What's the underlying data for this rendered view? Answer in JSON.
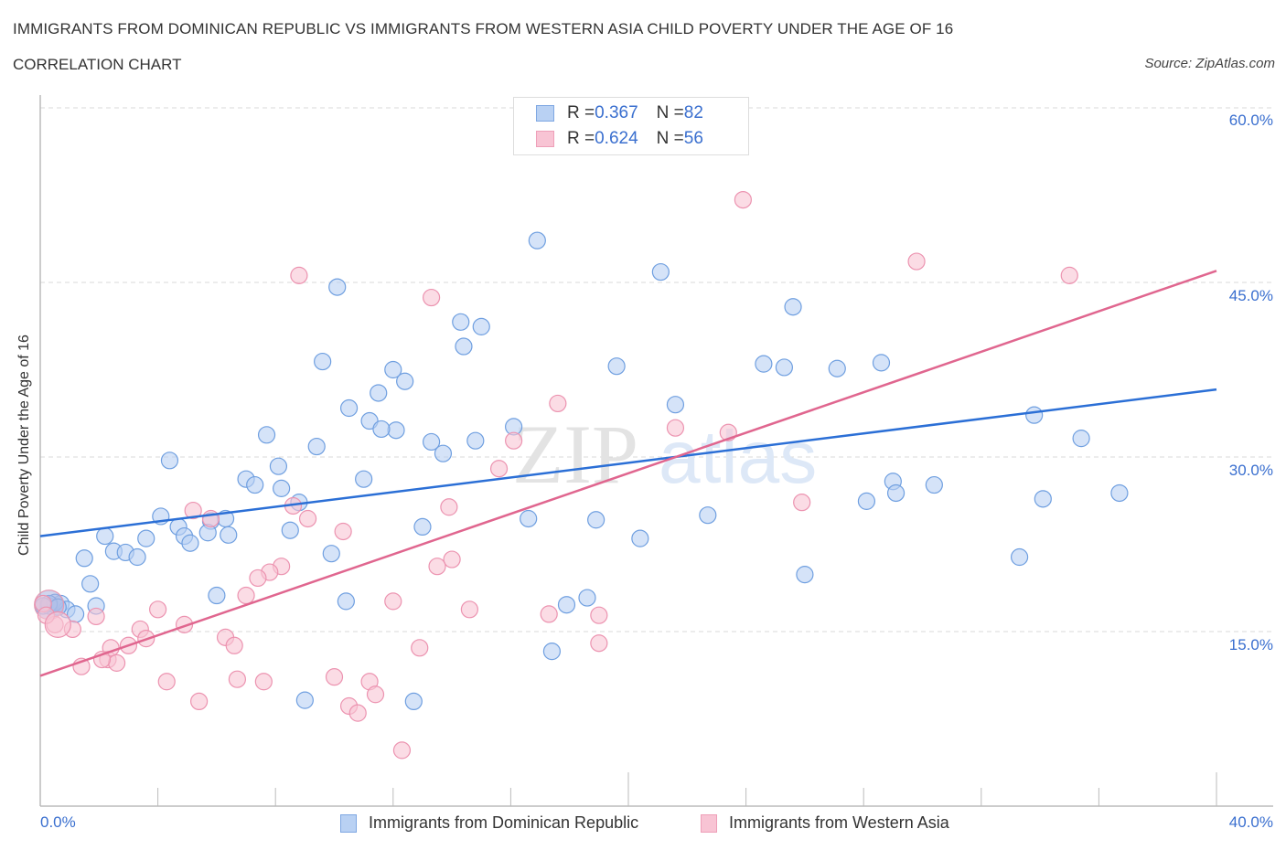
{
  "header": {
    "title": "IMMIGRANTS FROM DOMINICAN REPUBLIC VS IMMIGRANTS FROM WESTERN ASIA CHILD POVERTY UNDER THE AGE OF 16",
    "subtitle": "CORRELATION CHART",
    "source": "Source: ZipAtlas.com"
  },
  "legend": {
    "rows": [
      {
        "r_label": "R = ",
        "r_value": "0.367",
        "n_label": "N = ",
        "n_value": "82"
      },
      {
        "r_label": "R = ",
        "r_value": "0.624",
        "n_label": "N = ",
        "n_value": "56"
      }
    ]
  },
  "colors": {
    "blue_fill": "#b9d1f3",
    "blue_stroke": "#6f9fe0",
    "blue_line": "#2b6fd6",
    "pink_fill": "#f8c4d4",
    "pink_stroke": "#ec93b0",
    "pink_line": "#e0668f",
    "axis_text": "#3a6fcf",
    "grid": "#d8d8d8"
  },
  "watermark": {
    "zip": "ZIP",
    "atlas": "atlas"
  },
  "chart_data": {
    "type": "scatter",
    "title": "IMMIGRANTS FROM DOMINICAN REPUBLIC VS IMMIGRANTS FROM WESTERN ASIA CHILD POVERTY UNDER THE AGE OF 16",
    "subtitle": "CORRELATION CHART",
    "xlabel": "",
    "ylabel": "Child Poverty Under the Age of 16",
    "xlim": [
      0,
      40
    ],
    "ylim": [
      0,
      60
    ],
    "x_tick_labels": [
      "0.0%",
      "40.0%"
    ],
    "y_ticks": [
      15,
      30,
      45,
      60
    ],
    "y_tick_labels": [
      "15.0%",
      "30.0%",
      "45.0%",
      "60.0%"
    ],
    "grid": true,
    "legend_position": "top-center",
    "series": [
      {
        "name": "Immigrants from Dominican Republic",
        "R": 0.367,
        "N": 82,
        "trend": {
          "x": [
            0,
            40
          ],
          "y": [
            23.2,
            35.8
          ]
        },
        "points": [
          [
            16.9,
            48.6
          ],
          [
            10.1,
            44.6
          ],
          [
            21.1,
            45.9
          ],
          [
            25.6,
            42.9
          ],
          [
            14.3,
            41.6
          ],
          [
            15.0,
            41.2
          ],
          [
            14.4,
            39.5
          ],
          [
            9.6,
            38.2
          ],
          [
            19.6,
            37.8
          ],
          [
            24.6,
            38.0
          ],
          [
            25.3,
            37.7
          ],
          [
            27.1,
            37.6
          ],
          [
            28.6,
            38.1
          ],
          [
            12.0,
            37.5
          ],
          [
            12.4,
            36.5
          ],
          [
            11.5,
            35.5
          ],
          [
            10.5,
            34.2
          ],
          [
            21.6,
            34.5
          ],
          [
            11.2,
            33.1
          ],
          [
            12.1,
            32.3
          ],
          [
            11.6,
            32.4
          ],
          [
            16.1,
            32.6
          ],
          [
            33.8,
            33.6
          ],
          [
            35.4,
            31.6
          ],
          [
            9.4,
            30.9
          ],
          [
            13.3,
            31.3
          ],
          [
            13.7,
            30.3
          ],
          [
            14.8,
            31.4
          ],
          [
            7.7,
            31.9
          ],
          [
            4.4,
            29.7
          ],
          [
            8.1,
            29.2
          ],
          [
            11.0,
            28.1
          ],
          [
            7.0,
            28.1
          ],
          [
            7.3,
            27.6
          ],
          [
            8.2,
            27.3
          ],
          [
            29.0,
            27.9
          ],
          [
            30.4,
            27.6
          ],
          [
            29.1,
            26.9
          ],
          [
            28.1,
            26.2
          ],
          [
            34.1,
            26.4
          ],
          [
            36.7,
            26.9
          ],
          [
            8.8,
            26.1
          ],
          [
            22.7,
            25.0
          ],
          [
            16.6,
            24.7
          ],
          [
            18.9,
            24.6
          ],
          [
            4.1,
            24.9
          ],
          [
            6.3,
            24.7
          ],
          [
            5.8,
            24.5
          ],
          [
            13.0,
            24.0
          ],
          [
            8.5,
            23.7
          ],
          [
            4.7,
            24.0
          ],
          [
            3.6,
            23.0
          ],
          [
            2.2,
            23.2
          ],
          [
            4.9,
            23.2
          ],
          [
            5.7,
            23.5
          ],
          [
            5.1,
            22.6
          ],
          [
            6.4,
            23.3
          ],
          [
            20.4,
            23.0
          ],
          [
            2.5,
            21.9
          ],
          [
            2.9,
            21.8
          ],
          [
            3.3,
            21.4
          ],
          [
            1.5,
            21.3
          ],
          [
            9.9,
            21.7
          ],
          [
            33.3,
            21.4
          ],
          [
            26.0,
            19.9
          ],
          [
            1.7,
            19.1
          ],
          [
            6.0,
            18.1
          ],
          [
            18.6,
            17.9
          ],
          [
            10.4,
            17.6
          ],
          [
            17.9,
            17.3
          ],
          [
            1.9,
            17.2
          ],
          [
            0.7,
            17.4
          ],
          [
            0.9,
            16.9
          ],
          [
            0.3,
            17.2
          ],
          [
            0.5,
            17.5
          ],
          [
            1.2,
            16.5
          ],
          [
            17.4,
            13.3
          ],
          [
            9.0,
            9.1
          ],
          [
            12.7,
            9.0
          ],
          [
            0.3,
            17.4
          ],
          [
            0.6,
            17.1
          ],
          [
            0.1,
            17.2
          ]
        ]
      },
      {
        "name": "Immigrants from Western Asia",
        "R": 0.624,
        "N": 56,
        "trend": {
          "x": [
            0,
            40
          ],
          "y": [
            11.2,
            46.0
          ]
        },
        "points": [
          [
            23.9,
            52.1
          ],
          [
            29.8,
            46.8
          ],
          [
            35.0,
            45.6
          ],
          [
            8.8,
            45.6
          ],
          [
            13.3,
            43.7
          ],
          [
            17.6,
            34.6
          ],
          [
            21.6,
            32.5
          ],
          [
            23.4,
            32.1
          ],
          [
            16.1,
            31.4
          ],
          [
            15.6,
            29.0
          ],
          [
            25.9,
            26.1
          ],
          [
            5.2,
            25.4
          ],
          [
            8.6,
            25.8
          ],
          [
            5.8,
            24.7
          ],
          [
            9.1,
            24.7
          ],
          [
            13.9,
            25.7
          ],
          [
            10.3,
            23.6
          ],
          [
            14.0,
            21.2
          ],
          [
            13.5,
            20.6
          ],
          [
            8.2,
            20.6
          ],
          [
            7.8,
            20.1
          ],
          [
            7.4,
            19.6
          ],
          [
            7.0,
            18.1
          ],
          [
            12.0,
            17.6
          ],
          [
            14.6,
            16.9
          ],
          [
            17.3,
            16.5
          ],
          [
            19.0,
            16.4
          ],
          [
            4.0,
            16.9
          ],
          [
            4.9,
            15.6
          ],
          [
            1.9,
            16.3
          ],
          [
            1.1,
            15.2
          ],
          [
            0.5,
            15.6
          ],
          [
            3.4,
            15.2
          ],
          [
            3.6,
            14.4
          ],
          [
            3.0,
            13.8
          ],
          [
            2.3,
            12.6
          ],
          [
            6.3,
            14.5
          ],
          [
            6.6,
            13.8
          ],
          [
            2.4,
            13.6
          ],
          [
            1.4,
            12.0
          ],
          [
            2.6,
            12.3
          ],
          [
            2.1,
            12.6
          ],
          [
            4.3,
            10.7
          ],
          [
            6.7,
            10.9
          ],
          [
            7.6,
            10.7
          ],
          [
            10.0,
            11.1
          ],
          [
            11.2,
            10.7
          ],
          [
            12.9,
            13.6
          ],
          [
            19.0,
            14.0
          ],
          [
            5.4,
            9.0
          ],
          [
            10.5,
            8.6
          ],
          [
            10.8,
            8.0
          ],
          [
            11.4,
            9.6
          ],
          [
            12.3,
            4.8
          ],
          [
            0.1,
            17.4
          ],
          [
            0.2,
            16.4
          ]
        ]
      }
    ]
  },
  "axes": {
    "ylabel": "Child Poverty Under the Age of 16",
    "x_min_label": "0.0%",
    "x_max_label": "40.0%",
    "y_tick_labels": [
      "60.0%",
      "45.0%",
      "30.0%",
      "15.0%"
    ]
  },
  "bottom_legend": {
    "items": [
      "Immigrants from Dominican Republic",
      "Immigrants from Western Asia"
    ]
  }
}
